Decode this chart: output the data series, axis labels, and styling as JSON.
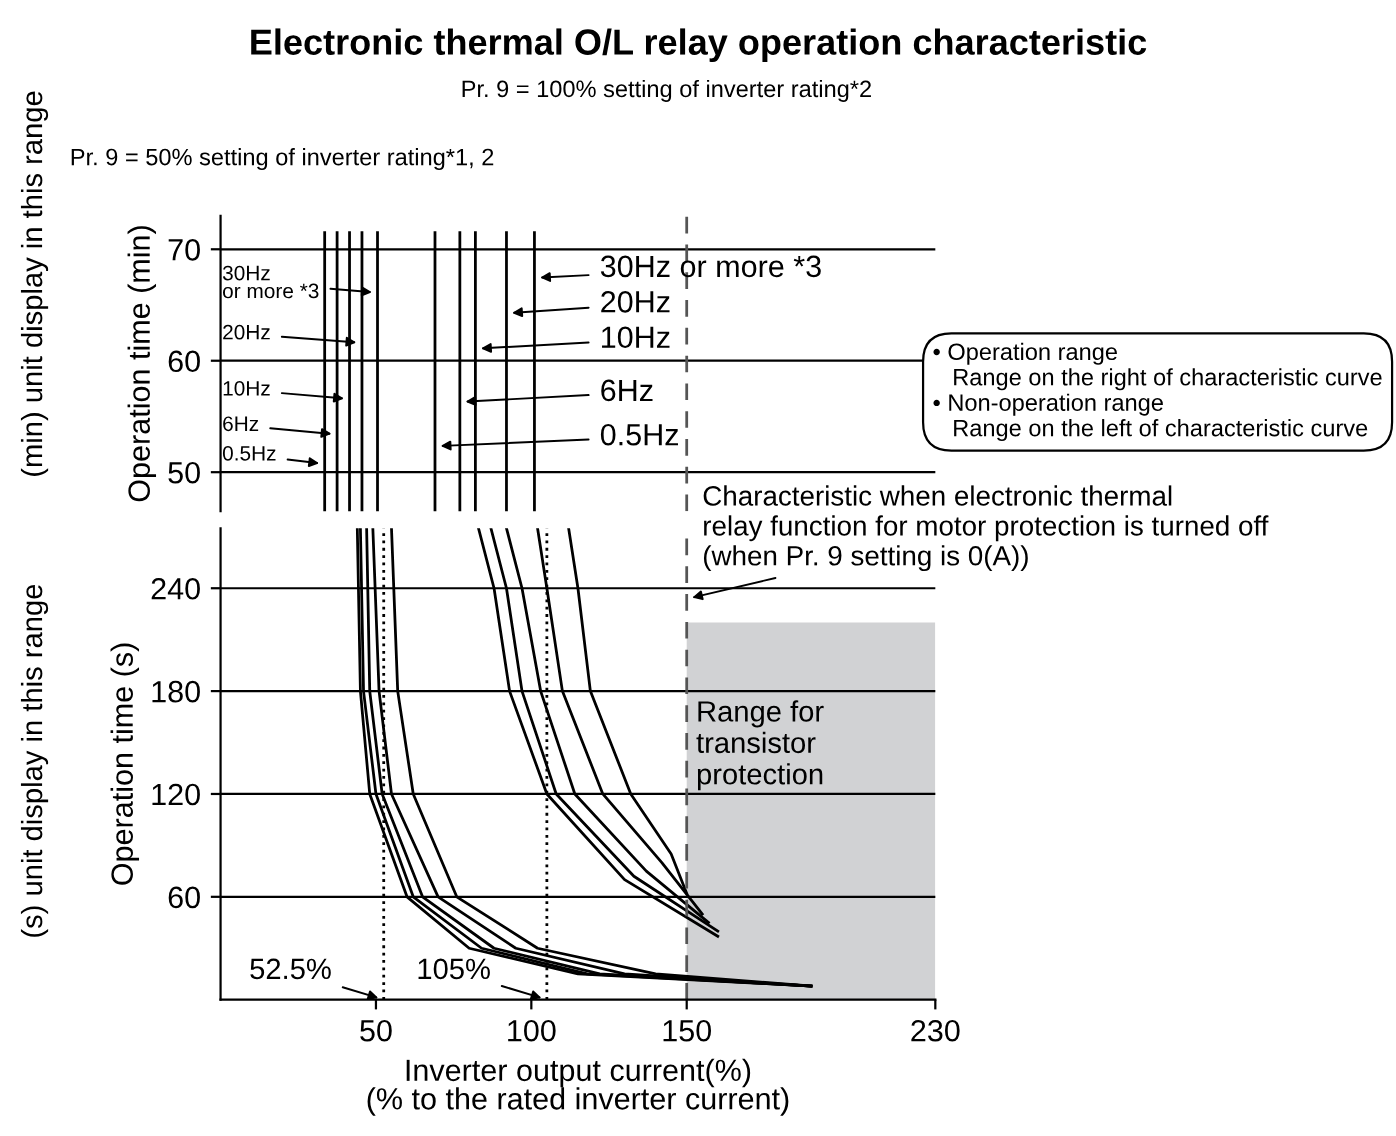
{
  "chart_data": [
    {
      "type": "line",
      "title": "Electronic thermal O/L relay operation characteristic",
      "ylabel": "Operation time (min)",
      "xlim": [
        0,
        230
      ],
      "ylim": [
        46.5,
        73
      ],
      "yticks": [
        50,
        60,
        70
      ],
      "grid": "y",
      "tick_labels": "y",
      "legend": "right",
      "annotations": [
        "Pr. 9 = 50% setting of inverter rating*1, 2",
        "Pr. 9 = 100% setting of inverter rating*2",
        "• Operation range\n   Range on the right of characteristic curve\n• Non-operation range\n   Range on the left of characteristic curve",
        "(min) unit display in this range"
      ],
      "ref_lines": [
        {
          "axis": "x",
          "value": 150,
          "line_style": "dashed",
          "color": "#555555"
        }
      ],
      "series": [
        {
          "name": "0.5Hz",
          "color": "#000000",
          "x": [
            33.5,
            33.5
          ],
          "values": [
            46.5,
            71.5
          ]
        },
        {
          "name": "6Hz",
          "color": "#000000",
          "x": [
            37.5,
            37.5
          ],
          "values": [
            46.5,
            71.5
          ]
        },
        {
          "name": "10Hz",
          "color": "#000000",
          "x": [
            41.5,
            41.5
          ],
          "values": [
            46.5,
            71.5
          ]
        },
        {
          "name": "20Hz",
          "color": "#000000",
          "x": [
            45.5,
            45.5
          ],
          "values": [
            46.5,
            71.5
          ]
        },
        {
          "name": "30Hz\nor more *3",
          "color": "#000000",
          "x": [
            50.5,
            50.5
          ],
          "values": [
            46.5,
            71.5
          ]
        },
        {
          "name": "0.5Hz",
          "color": "#000000",
          "x": [
            69,
            69
          ],
          "values": [
            46.5,
            71.5
          ]
        },
        {
          "name": "6Hz",
          "color": "#000000",
          "x": [
            77,
            77
          ],
          "values": [
            46.5,
            71.5
          ]
        },
        {
          "name": "10Hz",
          "color": "#000000",
          "x": [
            82,
            82
          ],
          "values": [
            46.5,
            71.5
          ]
        },
        {
          "name": "20Hz",
          "color": "#000000",
          "x": [
            92,
            92
          ],
          "values": [
            46.5,
            71.5
          ]
        },
        {
          "name": "30Hz or more *3",
          "color": "#000000",
          "x": [
            101,
            101
          ],
          "values": [
            46.5,
            71.5
          ]
        }
      ]
    },
    {
      "type": "line",
      "xlabel": "Inverter output current(%)\n(% to the rated inverter current)",
      "ylabel": "Operation time (s)",
      "xlim": [
        0,
        230
      ],
      "ylim": [
        0,
        275
      ],
      "xticks": [
        50,
        100,
        150,
        230
      ],
      "yticks": [
        60,
        120,
        180,
        240
      ],
      "grid": "y",
      "annotations": [
        "(s) unit display in this range"
      ],
      "ref_lines": [
        {
          "axis": "x",
          "value": 52.5,
          "label": "52.5%",
          "line_style": "dotted",
          "color": "#000000"
        },
        {
          "axis": "x",
          "value": 105,
          "label": "105%",
          "line_style": "dotted",
          "color": "#000000"
        },
        {
          "axis": "x",
          "value": 150,
          "label": "Characteristic when electronic thermal\nrelay function for motor protection is turned off\n(when Pr. 9 setting is 0(A))",
          "line_style": "dashed",
          "color": "#555555"
        }
      ],
      "bands": [
        {
          "axis": "x",
          "from": 150,
          "to": 230,
          "label": "Range for\ntransistor\nprotection",
          "color": "#d1d2d4"
        }
      ],
      "series": [
        {
          "color": "#000000",
          "x": [
            44,
            45,
            48,
            60,
            80,
            115,
            190
          ],
          "values": [
            275,
            180,
            120,
            60,
            30,
            15,
            8
          ]
        },
        {
          "color": "#000000",
          "x": [
            45,
            46,
            50,
            62,
            84,
            118,
            190
          ],
          "values": [
            275,
            180,
            120,
            60,
            30,
            15,
            8
          ]
        },
        {
          "color": "#000000",
          "x": [
            47,
            48,
            52,
            65,
            88,
            122,
            190
          ],
          "values": [
            275,
            180,
            120,
            60,
            30,
            15,
            8
          ]
        },
        {
          "color": "#000000",
          "x": [
            49,
            51,
            55,
            70,
            95,
            130,
            190
          ],
          "values": [
            275,
            180,
            120,
            60,
            30,
            15,
            8
          ]
        },
        {
          "color": "#000000",
          "x": [
            55,
            57,
            62,
            76,
            102,
            140,
            190
          ],
          "values": [
            275,
            180,
            120,
            60,
            30,
            15,
            8
          ]
        },
        {
          "color": "#000000",
          "x": [
            83,
            88,
            93,
            105,
            130,
            160
          ],
          "values": [
            275,
            240,
            180,
            120,
            70,
            37
          ]
        },
        {
          "color": "#000000",
          "x": [
            87,
            92,
            97,
            108,
            133,
            160
          ],
          "values": [
            275,
            240,
            180,
            120,
            72,
            40
          ]
        },
        {
          "color": "#000000",
          "x": [
            92,
            97,
            103,
            114,
            137,
            157
          ],
          "values": [
            275,
            240,
            180,
            120,
            75,
            45
          ]
        },
        {
          "color": "#000000",
          "x": [
            102,
            105,
            110,
            123,
            142,
            155
          ],
          "values": [
            275,
            240,
            180,
            120,
            80,
            50
          ]
        },
        {
          "color": "#000000",
          "x": [
            112,
            115,
            119,
            132,
            145,
            150
          ],
          "values": [
            275,
            240,
            180,
            120,
            85,
            62
          ]
        }
      ]
    }
  ]
}
